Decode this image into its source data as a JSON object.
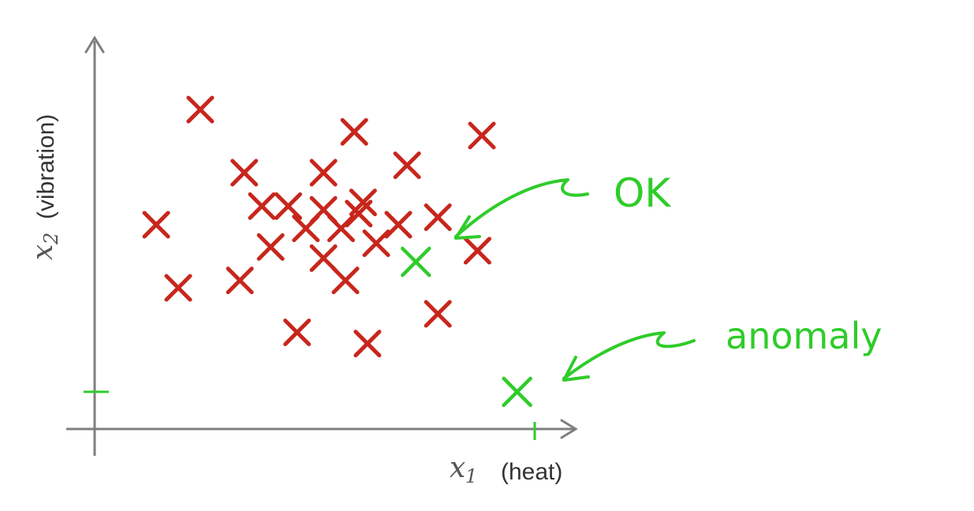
{
  "chart_data": {
    "type": "scatter",
    "xlabel_var": "x",
    "xlabel_sub": "1",
    "xlabel_unit": "(heat)",
    "ylabel_var": "x",
    "ylabel_sub": "2",
    "ylabel_unit": "(vibration)",
    "grid": false,
    "xlim": [
      0,
      10
    ],
    "ylim": [
      0,
      10
    ],
    "x_tick_marks": [
      10
    ],
    "y_tick_marks": [
      1
    ],
    "series": [
      {
        "marker": "x",
        "color": "#c8261c",
        "points": [
          [
            2.4,
            8.6
          ],
          [
            5.9,
            8.0
          ],
          [
            8.8,
            7.9
          ],
          [
            3.4,
            6.9
          ],
          [
            7.1,
            7.1
          ],
          [
            5.2,
            6.9
          ],
          [
            6.1,
            6.1
          ],
          [
            3.8,
            6.0
          ],
          [
            4.4,
            6.0
          ],
          [
            5.2,
            5.9
          ],
          [
            6.0,
            5.8
          ],
          [
            7.8,
            5.7
          ],
          [
            1.4,
            5.5
          ],
          [
            4.8,
            5.4
          ],
          [
            5.6,
            5.4
          ],
          [
            6.9,
            5.5
          ],
          [
            4.0,
            4.9
          ],
          [
            6.4,
            5.0
          ],
          [
            8.7,
            4.8
          ],
          [
            5.2,
            4.6
          ],
          [
            3.3,
            4.0
          ],
          [
            1.9,
            3.8
          ],
          [
            5.7,
            4.0
          ],
          [
            7.8,
            3.1
          ],
          [
            4.6,
            2.6
          ],
          [
            6.2,
            2.3
          ]
        ]
      },
      {
        "marker": "x",
        "color": "#2fcc2a",
        "points": [
          [
            7.3,
            4.5
          ],
          [
            9.6,
            1.0
          ]
        ]
      }
    ],
    "annotations": [
      {
        "text": "OK"
      },
      {
        "text": "anomaly"
      }
    ]
  }
}
